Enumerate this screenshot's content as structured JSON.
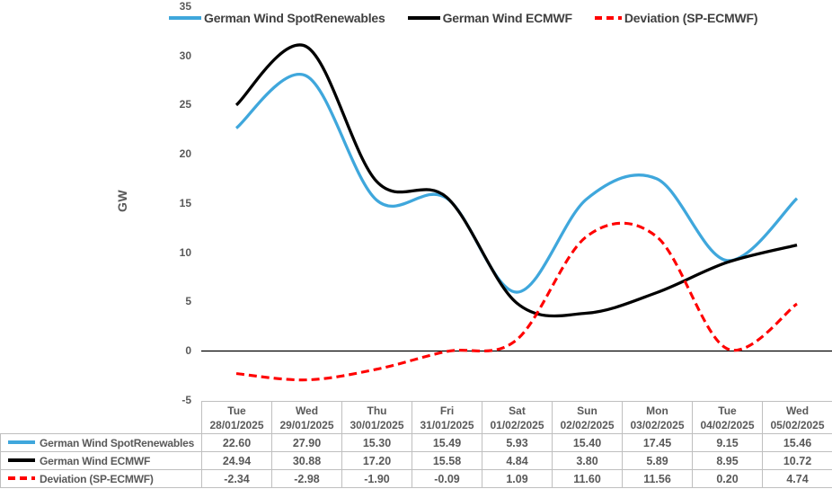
{
  "chart_data": {
    "type": "line",
    "title": "",
    "xlabel": "",
    "ylabel": "GW",
    "ylim": [
      -5,
      35
    ],
    "ytick_step": 5,
    "grid": false,
    "legend_position": "top",
    "has_data_table": true,
    "line_smoothing": true,
    "categories": [
      {
        "day": "Tue",
        "date": "28/01/2025"
      },
      {
        "day": "Wed",
        "date": "29/01/2025"
      },
      {
        "day": "Thu",
        "date": "30/01/2025"
      },
      {
        "day": "Fri",
        "date": "31/01/2025"
      },
      {
        "day": "Sat",
        "date": "01/02/2025"
      },
      {
        "day": "Sun",
        "date": "02/02/2025"
      },
      {
        "day": "Mon",
        "date": "03/02/2025"
      },
      {
        "day": "Tue",
        "date": "04/02/2025"
      },
      {
        "day": "Wed",
        "date": "05/02/2025"
      }
    ],
    "series": [
      {
        "name": "German Wind SpotRenewables",
        "color": "#3FA7DC",
        "line_style": "solid",
        "values": [
          22.6,
          27.9,
          15.3,
          15.49,
          5.93,
          15.4,
          17.45,
          9.15,
          15.46
        ]
      },
      {
        "name": "German Wind ECMWF",
        "color": "#000000",
        "line_style": "solid",
        "values": [
          24.94,
          30.88,
          17.2,
          15.58,
          4.84,
          3.8,
          5.89,
          8.95,
          10.72
        ]
      },
      {
        "name": "Deviation (SP-ECMWF)",
        "color": "#FF0000",
        "line_style": "dashed",
        "values": [
          -2.34,
          -2.98,
          -1.9,
          -0.09,
          1.09,
          11.6,
          11.56,
          0.2,
          4.74
        ]
      }
    ],
    "value_format_decimals": 2,
    "colors": {
      "axis_text": "#595959",
      "legend_text": "#404040",
      "table_border": "#BFBFBF",
      "table_text": "#595959",
      "zero_line": "#000000"
    }
  }
}
